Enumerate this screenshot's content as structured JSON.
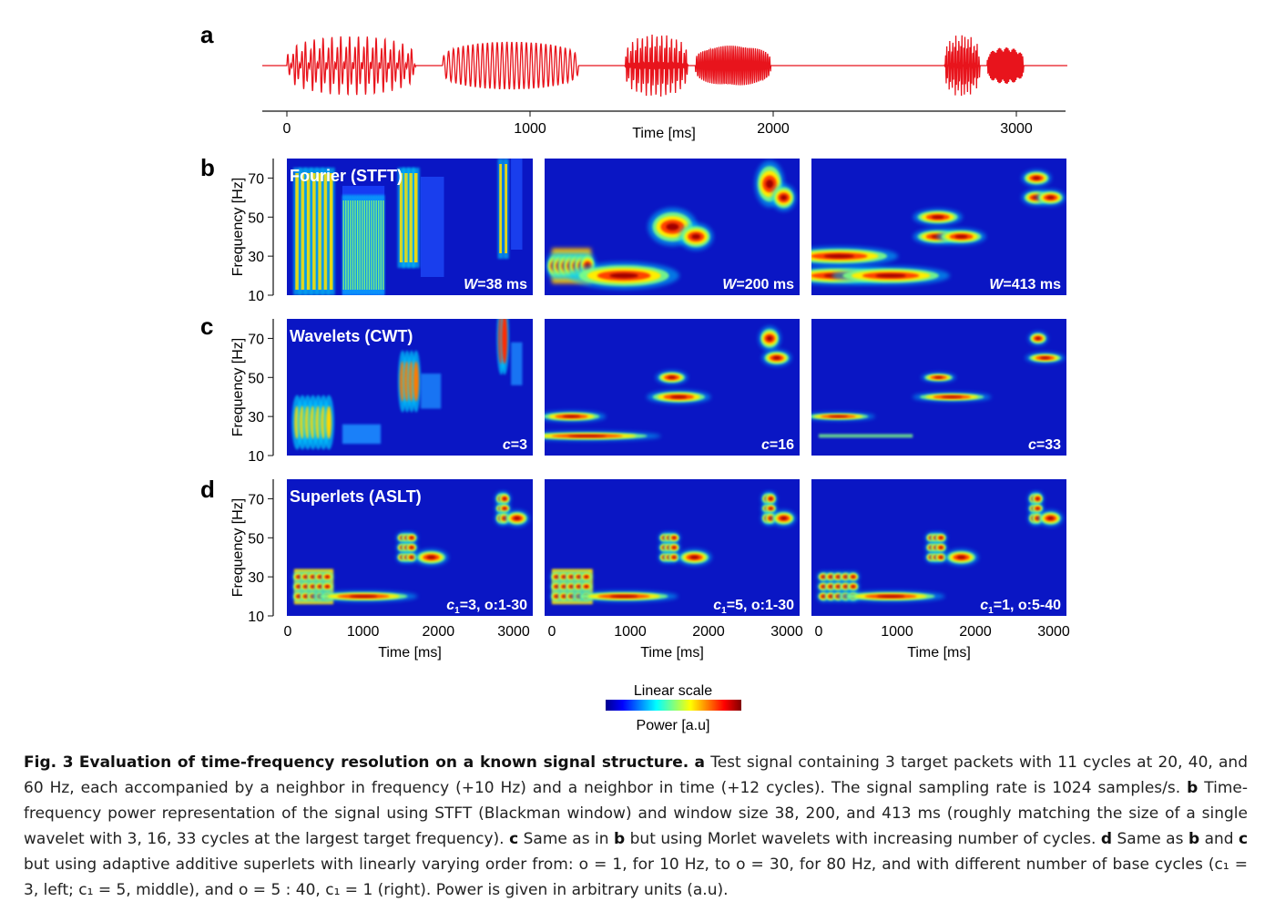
{
  "figure": {
    "panel_letters": [
      "a",
      "b",
      "c",
      "d"
    ],
    "signal_axis": {
      "ticks": [
        "0",
        "1000",
        "2000",
        "3000"
      ],
      "label": "Time [ms]"
    },
    "row_titles": [
      "Fourier (STFT)",
      "Wavelets (CWT)",
      "Superlets (ASLT)"
    ],
    "y_axis_label": "Frequency [Hz]",
    "y_ticks": [
      "70",
      "50",
      "30",
      "10"
    ],
    "x_ticks": [
      "0",
      "1000",
      "2000",
      "3000"
    ],
    "x_axis_label": "Time [ms]",
    "panel_params": [
      [
        {
          "sym": "W",
          "rest": "=38 ms"
        },
        {
          "sym": "W",
          "rest": "=200 ms"
        },
        {
          "sym": "W",
          "rest": "=413 ms"
        }
      ],
      [
        {
          "sym": "c",
          "rest": "=3"
        },
        {
          "sym": "c",
          "rest": "=16"
        },
        {
          "sym": "c",
          "rest": "=33"
        }
      ],
      [
        {
          "sym": "c",
          "sub": "1",
          "rest": "=3, o:1-30"
        },
        {
          "sym": "c",
          "sub": "1",
          "rest": "=5, o:1-30"
        },
        {
          "sym": "c",
          "sub": "1",
          "rest": "=1, o:5-40"
        }
      ]
    ],
    "colorbar": {
      "title": "Linear scale",
      "label": "Power [a.u]",
      "colors": [
        "#00008f",
        "#0000ff",
        "#0080ff",
        "#00ffff",
        "#80ff80",
        "#ffff00",
        "#ff8000",
        "#ff0000",
        "#800000"
      ]
    },
    "colors": {
      "signal": "#e8141c",
      "heatmap_bg": "#0a16c4",
      "text_white": "#ffffff"
    }
  },
  "caption": {
    "fig_label": "Fig. 3",
    "fig_title": "Evaluation of time-frequency resolution on a known signal structure.",
    "a": "a",
    "a_text": "Test signal containing 3 target packets with 11 cycles at 20, 40, and 60 Hz, each accompanied by a neighbor in frequency (+10 Hz) and a neighbor in time (+12 cycles). The signal sampling rate is 1024 samples/s.",
    "b": "b",
    "b_text": "Time-frequency power representation of the signal using STFT (Blackman window) and window size 38, 200, and 413 ms (roughly matching the size of a single wavelet with 3, 16, 33 cycles at the largest target frequency).",
    "c": "c",
    "c_text1": "Same as in",
    "c_ref": "b",
    "c_text2": "but using Morlet wavelets with increasing number of cycles.",
    "d": "d",
    "d_text1": "Same as",
    "d_ref1": "b",
    "d_and": "and",
    "d_ref2": "c",
    "d_text2": "but using adaptive additive superlets with linearly varying order from: o = 1, for 10 Hz, to o = 30, for 80 Hz, and with different number of base cycles (c₁ = 3, left; c₁ = 5, middle), and o = 5 : 40, c₁ = 1 (right). Power is given in arbitrary units (a.u)."
  }
}
